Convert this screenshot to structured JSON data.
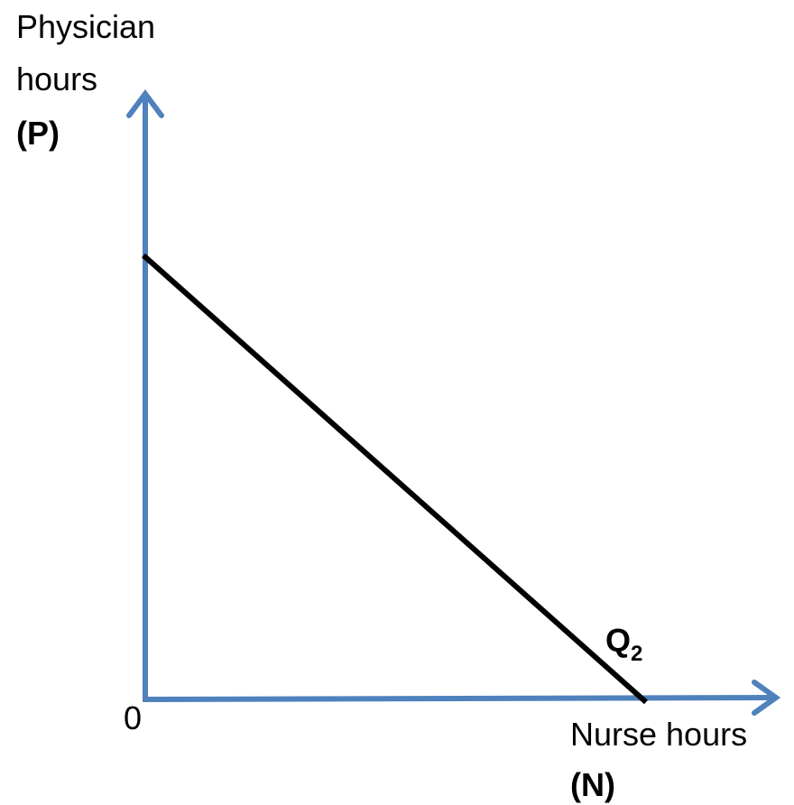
{
  "y_axis": {
    "label_lines": [
      "Physician",
      "hours"
    ],
    "symbol": "(P)"
  },
  "x_axis": {
    "label": "Nurse hours",
    "symbol": "(N)"
  },
  "origin": "0",
  "curve": {
    "label": "Q",
    "subscript": "2"
  }
}
